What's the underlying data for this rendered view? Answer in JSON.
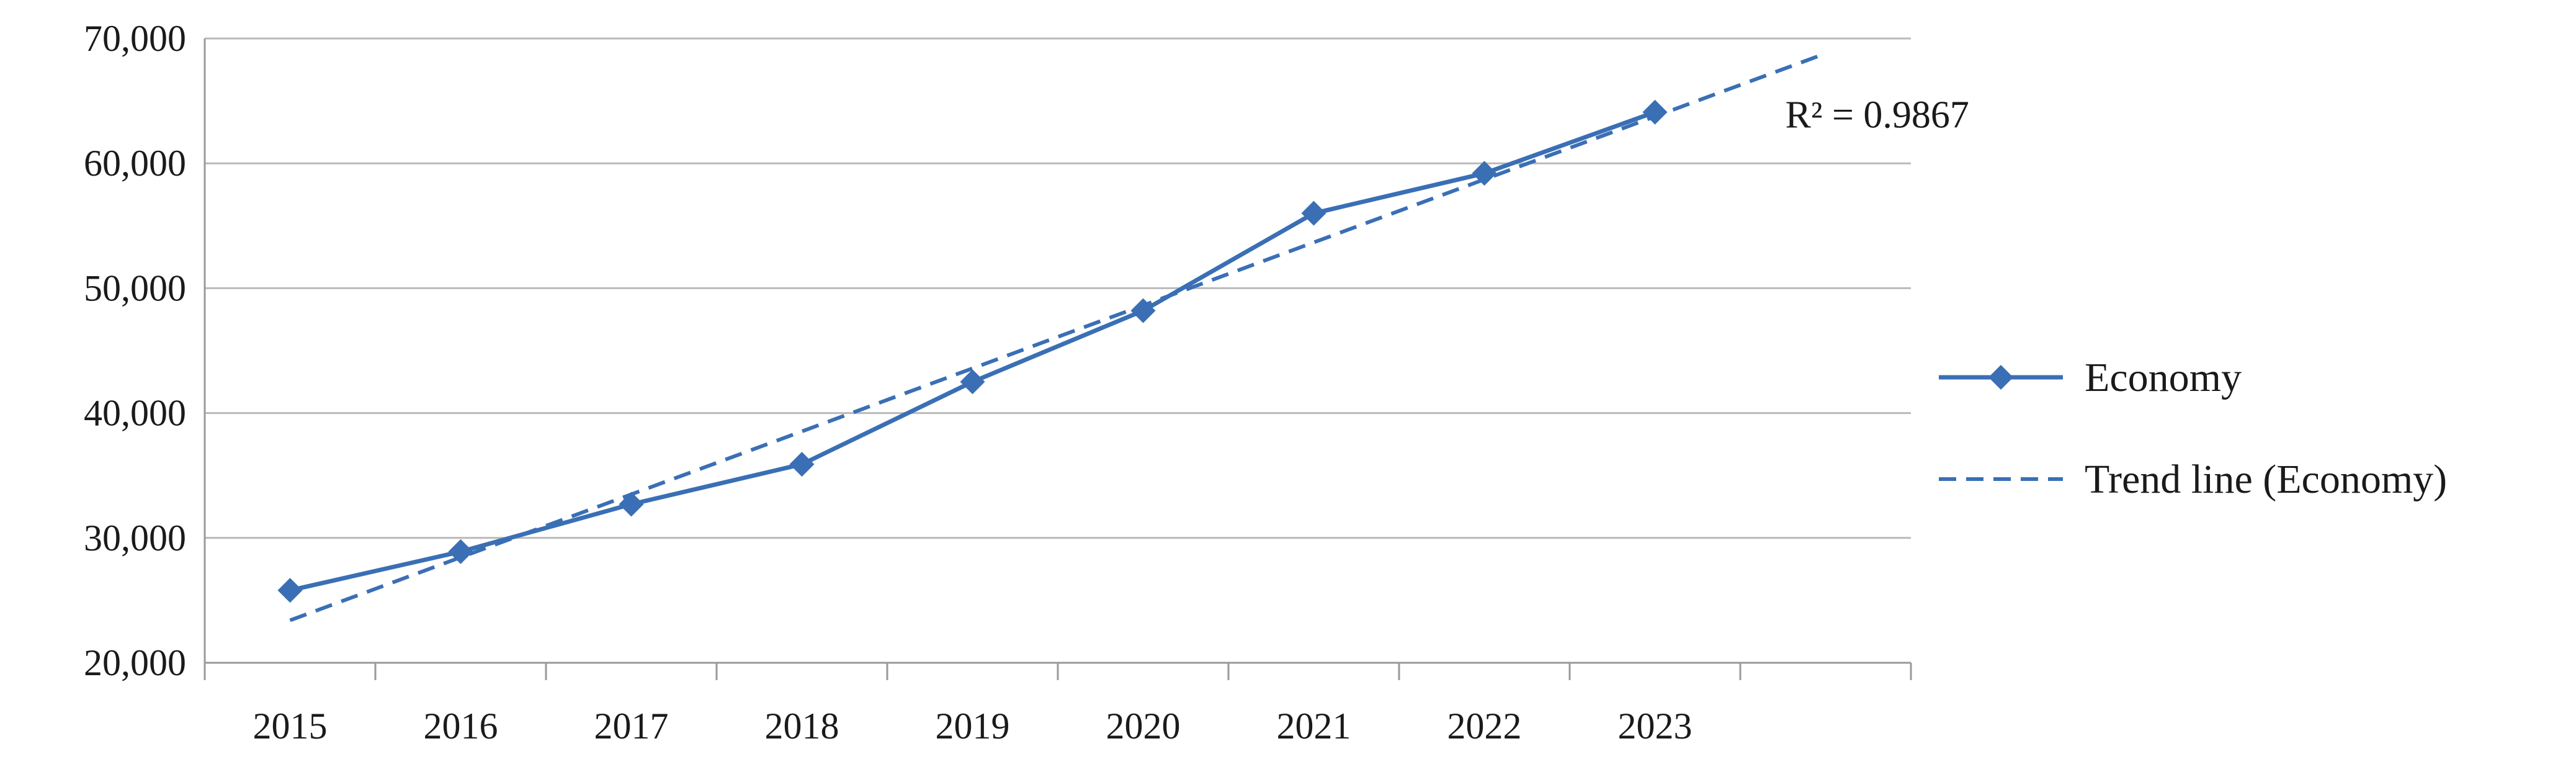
{
  "chart_data": {
    "type": "line",
    "title": "",
    "xlabel": "",
    "ylabel": "",
    "categories": [
      "2015",
      "2016",
      "2017",
      "2018",
      "2019",
      "2020",
      "2021",
      "2022",
      "2023"
    ],
    "ylim": [
      20000,
      70000
    ],
    "yticks": [
      "20,000",
      "30,000",
      "40,000",
      "50,000",
      "60,000",
      "70,000"
    ],
    "grid": "horizontal",
    "legend_position": "right",
    "series": [
      {
        "name": "Economy",
        "style": "solid",
        "marker": "diamond",
        "color": "#3a6fb5",
        "values": [
          25800,
          28900,
          32700,
          35900,
          42500,
          48200,
          56000,
          59200,
          64100
        ]
      },
      {
        "name": "Trend line (Economy)",
        "style": "dashed",
        "color": "#3a6fb5",
        "trend_start": 23400,
        "trend_end": 68800
      }
    ],
    "annotation": "R² = 0.9867"
  }
}
